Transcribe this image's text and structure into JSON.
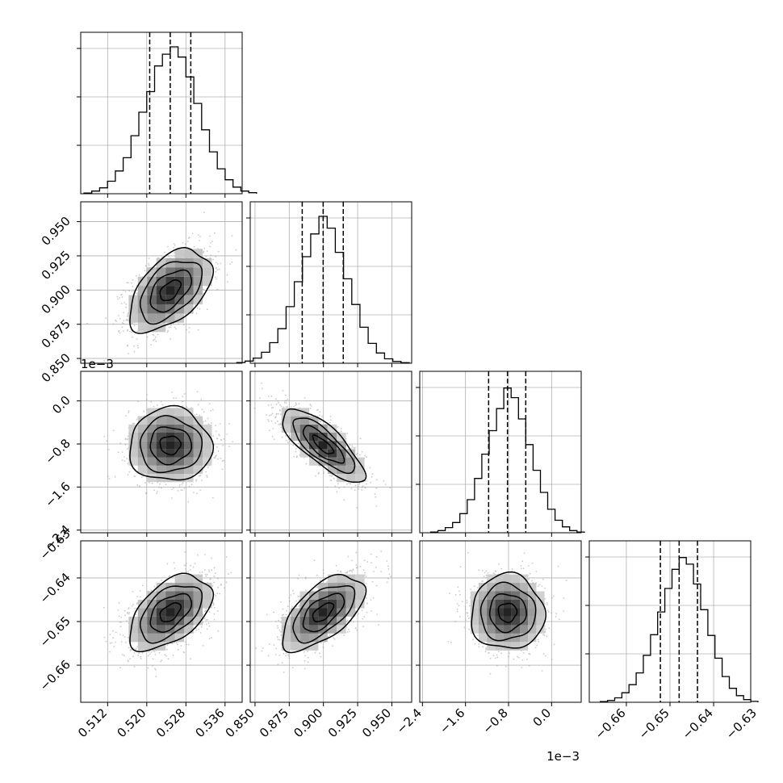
{
  "chart_data": {
    "type": "corner",
    "grid": true,
    "parameters": [
      {
        "ticks": [
          0.512,
          0.52,
          0.528,
          0.536
        ],
        "tick_labels": [
          "0.512",
          "0.520",
          "0.528",
          "0.536"
        ],
        "range": [
          0.5065,
          0.5395
        ],
        "offset_text": "",
        "quantiles": [
          0.5206,
          0.5248,
          0.529
        ],
        "hist": [
          0.005,
          0.018,
          0.04,
          0.085,
          0.155,
          0.245,
          0.395,
          0.555,
          0.695,
          0.87,
          0.95,
          1.0,
          0.93,
          0.795,
          0.615,
          0.435,
          0.285,
          0.17,
          0.095,
          0.045,
          0.018,
          0.007
        ],
        "mean": 0.5248,
        "sd": 0.0042
      },
      {
        "ticks": [
          0.85,
          0.875,
          0.9,
          0.925,
          0.95
        ],
        "tick_labels": [
          "0.850",
          "0.875",
          "0.900",
          "0.925",
          "0.950"
        ],
        "range": [
          0.8465,
          0.9645
        ],
        "offset_text": "",
        "quantiles": [
          0.8845,
          0.8998,
          0.9145
        ],
        "hist": [
          0.005,
          0.015,
          0.035,
          0.075,
          0.14,
          0.235,
          0.385,
          0.555,
          0.725,
          0.88,
          1.0,
          0.92,
          0.755,
          0.575,
          0.4,
          0.245,
          0.135,
          0.07,
          0.03,
          0.012,
          0.004
        ],
        "mean": 0.8997,
        "sd": 0.015
      },
      {
        "ticks": [
          -0.0024,
          -0.0016,
          -0.0008,
          0.0
        ],
        "tick_labels": [
          "−2.4",
          "−1.6",
          "−0.8",
          "0.0"
        ],
        "range": [
          -0.00245,
          0.00055
        ],
        "offset_text": "1e−3",
        "quantiles": [
          -0.00117,
          -0.00082,
          -0.00048
        ],
        "hist": [
          0.005,
          0.015,
          0.035,
          0.07,
          0.13,
          0.225,
          0.37,
          0.535,
          0.695,
          0.845,
          0.985,
          0.92,
          0.775,
          0.6,
          0.425,
          0.275,
          0.16,
          0.085,
          0.04,
          0.015,
          0.005
        ],
        "mean": -0.00082,
        "sd": 0.00034
      },
      {
        "ticks": [
          -0.66,
          -0.65,
          -0.64,
          -0.63
        ],
        "tick_labels": [
          "−0.66",
          "−0.65",
          "−0.64",
          "−0.63"
        ],
        "range": [
          -0.6685,
          -0.6315
        ],
        "offset_text": "",
        "quantiles": [
          -0.6522,
          -0.6479,
          -0.6437
        ],
        "hist": [
          0.005,
          0.012,
          0.03,
          0.065,
          0.12,
          0.2,
          0.32,
          0.46,
          0.615,
          0.775,
          0.905,
          0.985,
          0.94,
          0.805,
          0.63,
          0.455,
          0.3,
          0.175,
          0.095,
          0.045,
          0.018,
          0.006
        ],
        "mean": -0.6479,
        "sd": 0.0043
      }
    ],
    "correlations": [
      [
        1.0,
        0.5,
        0.0,
        0.5
      ],
      [
        0.5,
        1.0,
        -0.78,
        0.6
      ],
      [
        0.0,
        -0.78,
        1.0,
        0.0
      ],
      [
        0.5,
        0.6,
        0.0,
        1.0
      ]
    ],
    "contour_sigmas": [
      0.5,
      1.0,
      1.5,
      2.0
    ],
    "colors": {
      "line": "#000000",
      "grid": "#b0b0b0",
      "points": "#9e9e9e",
      "background": "#ffffff"
    }
  }
}
